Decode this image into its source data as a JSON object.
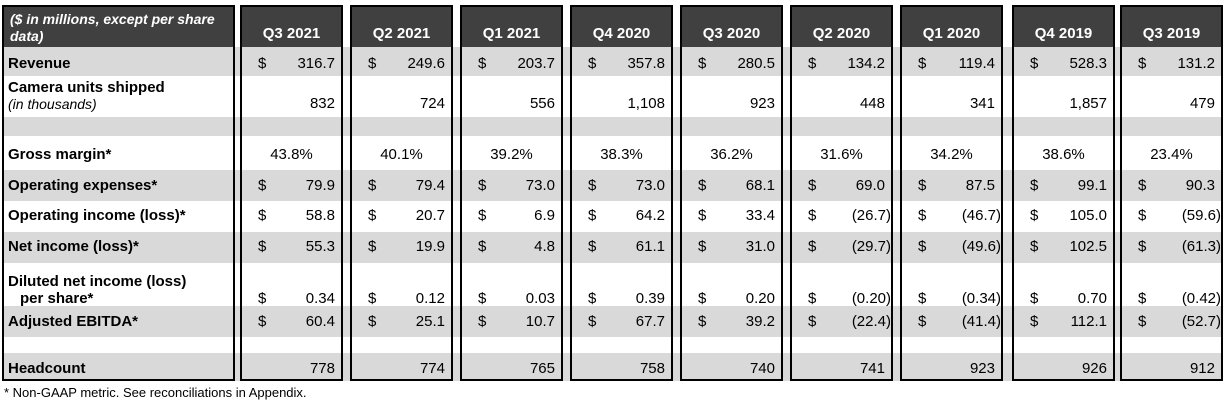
{
  "header": {
    "unit_note": "($ in millions, except per share data)",
    "periods": [
      "Q3 2021",
      "Q2 2021",
      "Q1 2021",
      "Q4 2020",
      "Q3 2020",
      "Q2 2020",
      "Q1 2020",
      "Q4 2019",
      "Q3 2019"
    ]
  },
  "rows": [
    {
      "label": "Revenue",
      "currency": true,
      "values": [
        "316.7",
        "249.6",
        "203.7",
        "357.8",
        "280.5",
        "134.2",
        "119.4",
        "528.3",
        "131.2"
      ]
    },
    {
      "label": "Camera units shipped",
      "sublabel": "(in thousands)",
      "currency": false,
      "values": [
        "832",
        "724",
        "556",
        "1,108",
        "923",
        "448",
        "341",
        "1,857",
        "479"
      ]
    },
    {
      "label": "Gross margin*",
      "percent": true,
      "values": [
        "43.8%",
        "40.1%",
        "39.2%",
        "38.3%",
        "36.2%",
        "31.6%",
        "34.2%",
        "38.6%",
        "23.4%"
      ]
    },
    {
      "label": "Operating expenses*",
      "currency": true,
      "values": [
        "79.9",
        "79.4",
        "73.0",
        "73.0",
        "68.1",
        "69.0",
        "87.5",
        "99.1",
        "90.3"
      ]
    },
    {
      "label": "Operating income (loss)*",
      "currency": true,
      "values": [
        "58.8",
        "20.7",
        "6.9",
        "64.2",
        "33.4",
        "(26.7)",
        "(46.7)",
        "105.0",
        "(59.6)"
      ]
    },
    {
      "label": "Net income (loss)*",
      "currency": true,
      "values": [
        "55.3",
        "19.9",
        "4.8",
        "61.1",
        "31.0",
        "(29.7)",
        "(49.6)",
        "102.5",
        "(61.3)"
      ]
    },
    {
      "label": "Diluted net income (loss)",
      "label2": "per share*",
      "currency": true,
      "values": [
        "0.34",
        "0.12",
        "0.03",
        "0.39",
        "0.20",
        "(0.20)",
        "(0.34)",
        "0.70",
        "(0.42)"
      ]
    },
    {
      "label": "Adjusted EBITDA*",
      "currency": true,
      "values": [
        "60.4",
        "25.1",
        "10.7",
        "67.7",
        "39.2",
        "(22.4)",
        "(41.4)",
        "112.1",
        "(52.7)"
      ]
    },
    {
      "label": "Headcount",
      "currency": false,
      "values": [
        "778",
        "774",
        "765",
        "758",
        "740",
        "741",
        "923",
        "926",
        "912"
      ]
    }
  ],
  "currency_symbol": "$",
  "footnote": "* Non-GAAP metric. See reconciliations in Appendix.",
  "colors": {
    "header_bg": "#404040",
    "band_bg": "#d9d9d9",
    "border": "#000000"
  }
}
